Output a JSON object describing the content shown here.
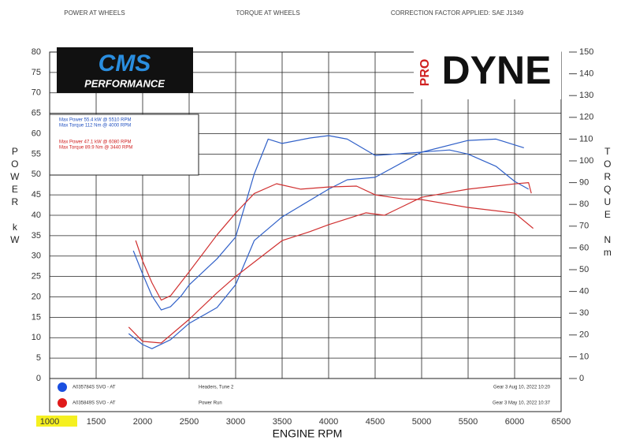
{
  "chart_data": {
    "type": "line",
    "header": [
      "POWER AT WHEELS",
      "TORQUE AT WHEELS",
      "CORRECTION FACTOR APPLIED: SAE J1349"
    ],
    "logos": {
      "left": "CMS",
      "left_sub": "PERFORMANCE",
      "right_pre": "PRO",
      "right": "DYNE"
    },
    "ylabel": "POWER kW",
    "y2label": "TORQUE Nm",
    "xlabel": "ENGINE RPM",
    "xlim": [
      1000,
      6500
    ],
    "xticks": [
      1000,
      1500,
      2000,
      2500,
      3000,
      3500,
      4000,
      4500,
      5000,
      5500,
      6000,
      6500
    ],
    "ylim": [
      0,
      80
    ],
    "yticks": [
      0,
      5,
      10,
      15,
      20,
      25,
      30,
      35,
      40,
      45,
      50,
      55,
      60,
      65,
      70,
      75,
      80
    ],
    "y2lim": [
      0,
      150
    ],
    "y2ticks": [
      0,
      10,
      20,
      30,
      40,
      50,
      60,
      70,
      80,
      90,
      100,
      110,
      120,
      130,
      140,
      150
    ],
    "grid": true,
    "summary": [
      {
        "color": "#2050c0",
        "lines": [
          "Max Power 55.4 kW @ 5510 RPM",
          "Max Torque 112 Nm @ 4000 RPM"
        ]
      },
      {
        "color": "#d02020",
        "lines": [
          "Max Power 47.1 kW @ 6080 RPM",
          "Max Torque 89.9 Nm @ 3440 RPM"
        ]
      }
    ],
    "runs": [
      {
        "color": "#1a4fe0",
        "name": "A035784S SVO - AT",
        "note": "Headers, Tune 2",
        "info": "Gear 3 Aug 10, 2022 10:20"
      },
      {
        "color": "#e01a1a",
        "name": "A035849S SVO - AT",
        "note": "Power Run",
        "info": "Gear 3 May 10, 2022 10:37"
      }
    ],
    "series": [
      {
        "color": "#3060c8",
        "axis": "y2",
        "x": [
          1900,
          2000,
          2100,
          2200,
          2300,
          2415,
          2500,
          2800,
          3000,
          3200,
          3350,
          3500,
          3800,
          4000,
          4200,
          4500,
          5000,
          5500,
          5800,
          6100
        ],
        "values": [
          58.7,
          48,
          38,
          31.5,
          33,
          38,
          43,
          55,
          65,
          94,
          110,
          108,
          110.5,
          111.6,
          110,
          102.5,
          104,
          109.4,
          110,
          106
        ]
      },
      {
        "color": "#3060c8",
        "axis": "y",
        "x": [
          1850,
          2000,
          2100,
          2300,
          2500,
          2800,
          3000,
          3200,
          3500,
          4000,
          4200,
          4500,
          5000,
          5300,
          5500,
          5800,
          6000,
          6150
        ],
        "values": [
          11,
          8.3,
          7.3,
          9.5,
          13.5,
          17.4,
          23,
          33.8,
          39.6,
          46.4,
          48.7,
          49.3,
          55.5,
          56,
          55,
          52,
          48.3,
          46.4
        ]
      },
      {
        "color": "#d03030",
        "axis": "y2",
        "x": [
          1925,
          2000,
          2100,
          2200,
          2300,
          2500,
          2800,
          3000,
          3200,
          3440,
          3700,
          4000,
          4300,
          4500,
          4800,
          5000,
          5500,
          6000,
          6200
        ],
        "values": [
          63.4,
          54,
          44,
          36,
          38,
          49,
          66,
          76,
          85,
          89.5,
          87,
          88,
          88.4,
          84.4,
          82.5,
          82.2,
          78.6,
          76,
          69
        ]
      },
      {
        "color": "#d03030",
        "axis": "y",
        "x": [
          1850,
          2000,
          2200,
          2500,
          2800,
          3000,
          3500,
          3800,
          4000,
          4400,
          4600,
          5000,
          5500,
          6000,
          6150,
          6180
        ],
        "values": [
          12.6,
          9.1,
          8.7,
          14.5,
          21,
          25,
          33.8,
          36,
          37.7,
          40.6,
          40,
          44.4,
          46.4,
          47.7,
          48,
          45.4
        ]
      }
    ]
  }
}
